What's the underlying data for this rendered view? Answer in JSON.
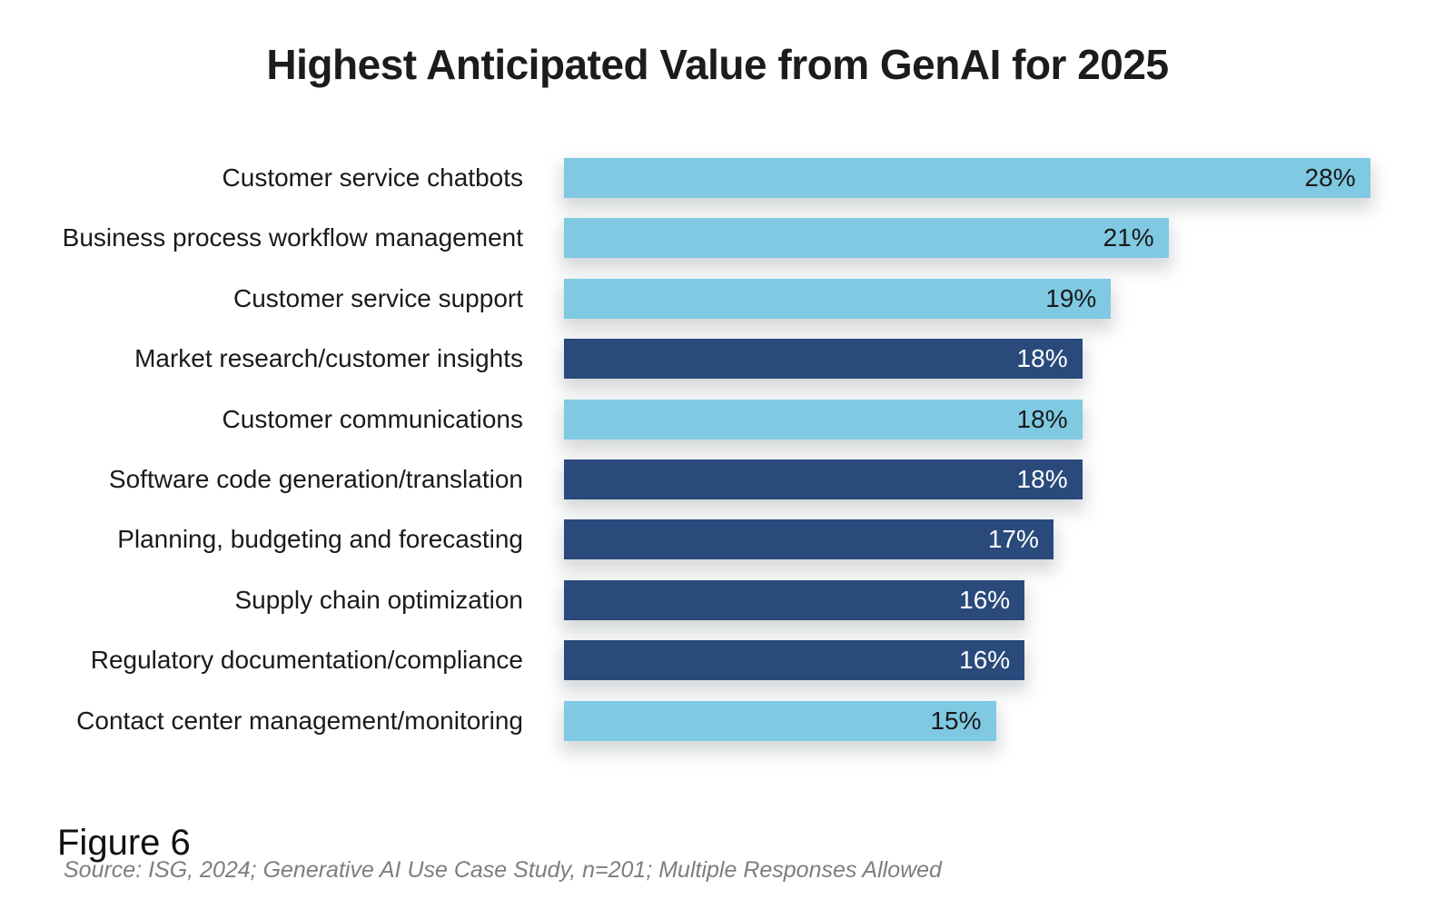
{
  "title": "Highest Anticipated Value from GenAI for 2025",
  "figure_label": "Figure 6",
  "source_note": "Source: ISG, 2024; Generative AI Use Case Study, n=201; Multiple Responses Allowed",
  "colors": {
    "light_blue": "#7FC9E2",
    "dark_blue": "#294A7B",
    "value_text_on_light": "#1A1A1A",
    "value_text_on_dark": "#FFFFFF",
    "category_label": "#1A1A1A",
    "title_text": "#1C1C1C",
    "source_gray": "#7E7E7E"
  },
  "chart_data": {
    "type": "bar",
    "orientation": "horizontal",
    "title": "Highest Anticipated Value from GenAI for 2025",
    "xlabel": "",
    "ylabel": "",
    "xlim": [
      0,
      28
    ],
    "grid": false,
    "legend": false,
    "value_label_position": "inside-end",
    "categories": [
      "Customer service chatbots",
      "Business process workflow management",
      "Customer service support",
      "Market research/customer insights",
      "Customer communications",
      "Software code generation/translation",
      "Planning, budgeting and forecasting",
      "Supply chain optimization",
      "Regulatory documentation/compliance",
      "Contact center management/monitoring"
    ],
    "values": [
      28,
      21,
      19,
      18,
      18,
      18,
      17,
      16,
      16,
      15
    ],
    "value_labels": [
      "28%",
      "21%",
      "19%",
      "18%",
      "18%",
      "18%",
      "17%",
      "16%",
      "16%",
      "15%"
    ],
    "bar_color_keys": [
      "light",
      "light",
      "light",
      "dark",
      "light",
      "dark",
      "dark",
      "dark",
      "dark",
      "light"
    ]
  }
}
